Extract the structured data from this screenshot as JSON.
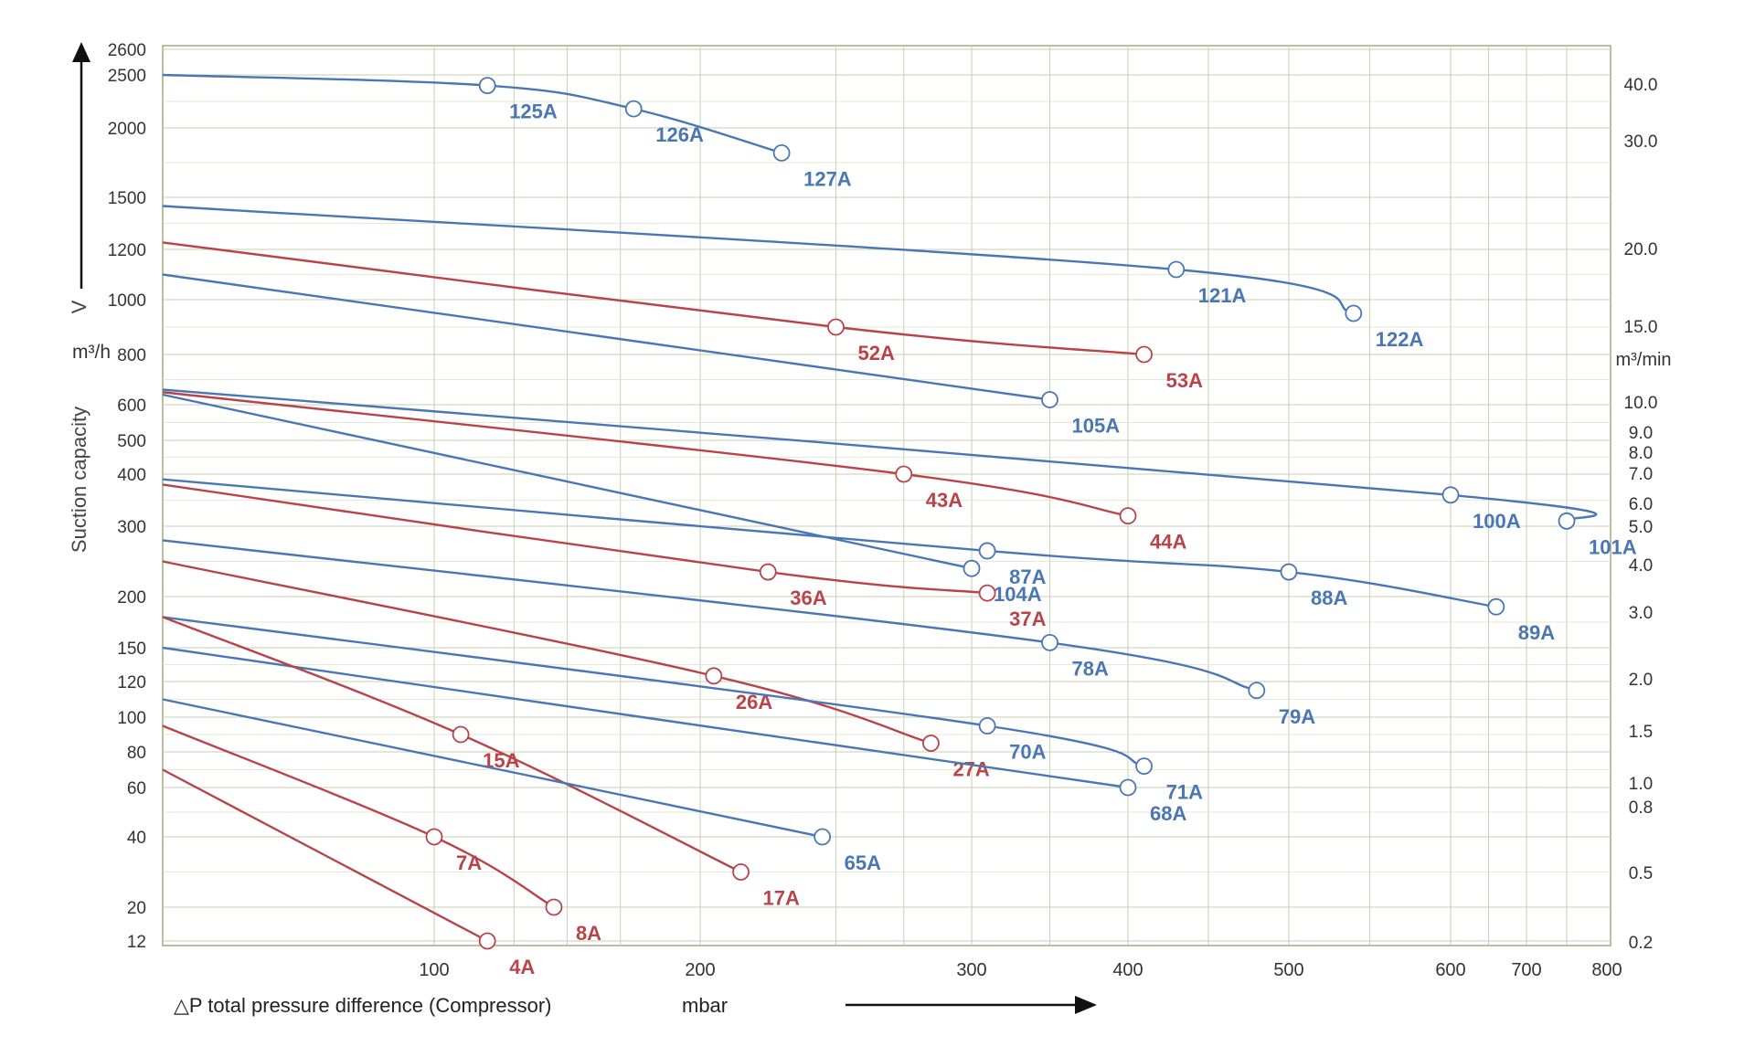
{
  "chart_data": {
    "type": "line",
    "xlabel": "△P total pressure difference (Compressor)",
    "xunit": "mbar",
    "y_axis_label": "Suction capacity",
    "y_arrow_label": "V",
    "y_unit_left": "m³/h",
    "y_unit_right": "m³/min",
    "x_scale": "log",
    "y_scale": "nonlinear",
    "grid": true,
    "xlim": [
      0,
      800
    ],
    "ylim": [
      12,
      2600
    ],
    "x_ticks": [
      "100",
      "200",
      "300",
      "400",
      "500",
      "600",
      "700",
      "800"
    ],
    "y_ticks_left": [
      "2600",
      "2500",
      "2000",
      "1500",
      "1200",
      "1000",
      "800",
      "600",
      "500",
      "400",
      "300",
      "200",
      "150",
      "120",
      "100",
      "80",
      "60",
      "40",
      "20",
      "12"
    ],
    "y_ticks_right": [
      "40.0",
      "30.0",
      "20.0",
      "15.0",
      "10.0",
      "9.0",
      "8.0",
      "7.0",
      "6.0",
      "5.0",
      "4.0",
      "3.0",
      "2.0",
      "1.5",
      "1.0",
      "0.8",
      "0.5",
      "0.2"
    ],
    "colors": {
      "blue": "#4a77b4",
      "red": "#b8444a",
      "grid": "#c9cfb2",
      "axis": "#9aa47a"
    },
    "series": [
      {
        "name": "125A / 126A / 127A",
        "color": "blue",
        "points": [
          [
            0,
            2500
          ],
          [
            120,
            2400
          ],
          [
            175,
            2180
          ],
          [
            230,
            1820
          ]
        ],
        "markers": [
          {
            "label": "125A",
            "x": 120,
            "y": 2400
          },
          {
            "label": "126A",
            "x": 175,
            "y": 2180
          },
          {
            "label": "127A",
            "x": 230,
            "y": 1820
          }
        ]
      },
      {
        "name": "121A / 122A",
        "color": "blue",
        "points": [
          [
            0,
            1450
          ],
          [
            430,
            1120
          ],
          [
            540,
            950
          ]
        ],
        "markers": [
          {
            "label": "121A",
            "x": 430,
            "y": 1120
          },
          {
            "label": "122A",
            "x": 540,
            "y": 950
          }
        ]
      },
      {
        "name": "52A / 53A",
        "color": "red",
        "points": [
          [
            0,
            1240
          ],
          [
            250,
            900
          ],
          [
            410,
            800
          ]
        ],
        "markers": [
          {
            "label": "52A",
            "x": 250,
            "y": 900
          },
          {
            "label": "53A",
            "x": 410,
            "y": 800
          }
        ]
      },
      {
        "name": "105A",
        "color": "blue",
        "points": [
          [
            0,
            1100
          ],
          [
            350,
            620
          ]
        ],
        "markers": [
          {
            "label": "105A",
            "x": 350,
            "y": 620
          }
        ]
      },
      {
        "name": "100A / 101A",
        "color": "blue",
        "points": [
          [
            0,
            660
          ],
          [
            600,
            360
          ],
          [
            750,
            310
          ]
        ],
        "markers": [
          {
            "label": "100A",
            "x": 600,
            "y": 360
          },
          {
            "label": "101A",
            "x": 750,
            "y": 310
          }
        ]
      },
      {
        "name": "43A / 44A",
        "color": "red",
        "points": [
          [
            0,
            650
          ],
          [
            275,
            400
          ],
          [
            400,
            320
          ]
        ],
        "markers": [
          {
            "label": "43A",
            "x": 275,
            "y": 400
          },
          {
            "label": "44A",
            "x": 400,
            "y": 320
          }
        ]
      },
      {
        "name": "104A",
        "color": "blue",
        "points": [
          [
            0,
            640
          ],
          [
            300,
            240
          ]
        ],
        "markers": [
          {
            "label": "104A",
            "x": 300,
            "y": 240
          }
        ]
      },
      {
        "name": "87A / 88A / 89A",
        "color": "blue",
        "points": [
          [
            0,
            390
          ],
          [
            310,
            265
          ],
          [
            500,
            235
          ],
          [
            660,
            190
          ]
        ],
        "markers": [
          {
            "label": "87A",
            "x": 310,
            "y": 265
          },
          {
            "label": "88A",
            "x": 500,
            "y": 235
          },
          {
            "label": "89A",
            "x": 660,
            "y": 190
          }
        ]
      },
      {
        "name": "36A / 37A",
        "color": "red",
        "points": [
          [
            0,
            380
          ],
          [
            225,
            235
          ],
          [
            310,
            205
          ]
        ],
        "markers": [
          {
            "label": "36A",
            "x": 225,
            "y": 235
          },
          {
            "label": "37A",
            "x": 310,
            "y": 205
          }
        ]
      },
      {
        "name": "78A / 79A",
        "color": "blue",
        "points": [
          [
            0,
            280
          ],
          [
            350,
            155
          ],
          [
            480,
            115
          ]
        ],
        "markers": [
          {
            "label": "78A",
            "x": 350,
            "y": 155
          },
          {
            "label": "79A",
            "x": 480,
            "y": 115
          }
        ]
      },
      {
        "name": "26A / 27A",
        "color": "red",
        "points": [
          [
            0,
            250
          ],
          [
            205,
            125
          ],
          [
            285,
            85
          ]
        ],
        "markers": [
          {
            "label": "26A",
            "x": 205,
            "y": 125
          },
          {
            "label": "27A",
            "x": 285,
            "y": 85
          }
        ]
      },
      {
        "name": "70A / 71A",
        "color": "blue",
        "points": [
          [
            0,
            180
          ],
          [
            310,
            95
          ],
          [
            410,
            72
          ]
        ],
        "markers": [
          {
            "label": "70A",
            "x": 310,
            "y": 95
          },
          {
            "label": "71A",
            "x": 410,
            "y": 72
          }
        ]
      },
      {
        "name": "68A",
        "color": "blue",
        "points": [
          [
            0,
            150
          ],
          [
            400,
            60
          ]
        ],
        "markers": [
          {
            "label": "68A",
            "x": 400,
            "y": 60
          }
        ]
      },
      {
        "name": "15A / 17A",
        "color": "red",
        "points": [
          [
            0,
            180
          ],
          [
            110,
            90
          ],
          [
            215,
            30
          ]
        ],
        "markers": [
          {
            "label": "15A",
            "x": 110,
            "y": 90
          },
          {
            "label": "17A",
            "x": 215,
            "y": 30
          }
        ]
      },
      {
        "name": "65A",
        "color": "blue",
        "points": [
          [
            0,
            110
          ],
          [
            245,
            40
          ]
        ],
        "markers": [
          {
            "label": "65A",
            "x": 245,
            "y": 40
          }
        ]
      },
      {
        "name": "7A / 8A",
        "color": "red",
        "points": [
          [
            0,
            95
          ],
          [
            100,
            40
          ],
          [
            145,
            20
          ]
        ],
        "markers": [
          {
            "label": "7A",
            "x": 100,
            "y": 40
          },
          {
            "label": "8A",
            "x": 145,
            "y": 20
          }
        ]
      },
      {
        "name": "4A",
        "color": "red",
        "points": [
          [
            0,
            70
          ],
          [
            120,
            12
          ]
        ],
        "markers": [
          {
            "label": "4A",
            "x": 120,
            "y": 12
          }
        ]
      }
    ]
  }
}
